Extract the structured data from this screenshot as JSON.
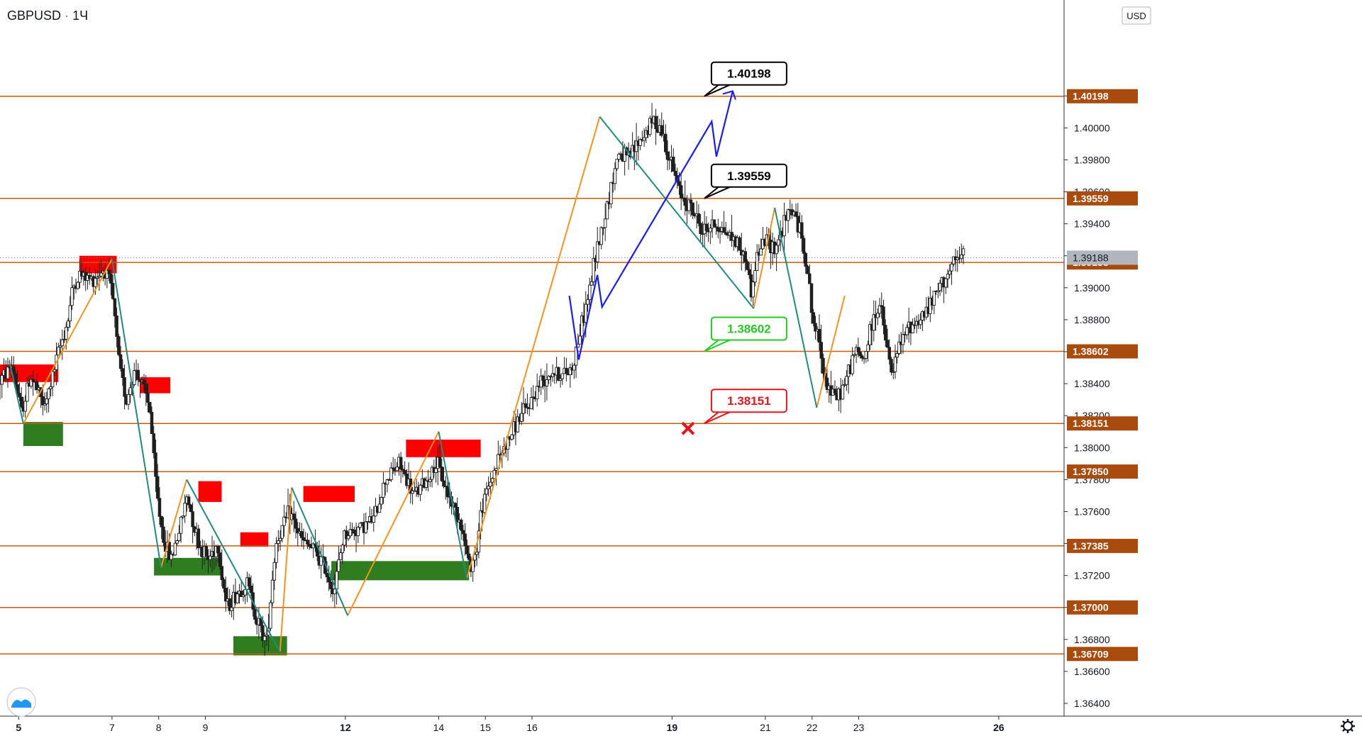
{
  "header": {
    "symbol": "GBPUSD",
    "separator": "·",
    "interval": "1Ч",
    "currency": "USD"
  },
  "colors": {
    "background": "#ffffff",
    "level_line": "#c75b12",
    "level_badge": "#a94b0c",
    "candle": "#1f1f1f",
    "supply_zone": "#ff0000",
    "demand_zone": "#2e7d1f",
    "zigzag_up": "#f7931a",
    "zigzag_down": "#1e8c7e",
    "projection": "#1a1aff",
    "callout_black": "#000000",
    "callout_green": "#22cc22",
    "callout_red": "#e8141c",
    "cross_marker": "#e8141c",
    "current_price_badge": "#b2b5be",
    "axis_text": "#131722"
  },
  "icons": {
    "logo": "tradingview-logo-icon",
    "settings": "gear-icon",
    "cross": "x-mark-icon"
  },
  "chart_data": {
    "type": "candlestick",
    "title": "GBPUSD · 1Ч",
    "ylim": [
      1.3632,
      1.408
    ],
    "y_ticks": [
      1.364,
      1.366,
      1.368,
      1.37,
      1.372,
      1.374,
      1.376,
      1.378,
      1.38,
      1.382,
      1.384,
      1.386,
      1.388,
      1.39,
      1.392,
      1.394,
      1.396,
      1.398,
      1.4,
      1.402
    ],
    "x_axis": {
      "range": [
        4.6,
        27.4
      ],
      "ticks": [
        {
          "label": "5",
          "value": 5,
          "bold": true
        },
        {
          "label": "7",
          "value": 7,
          "bold": false
        },
        {
          "label": "8",
          "value": 8,
          "bold": false
        },
        {
          "label": "9",
          "value": 9,
          "bold": false
        },
        {
          "label": "12",
          "value": 12,
          "bold": true
        },
        {
          "label": "14",
          "value": 14,
          "bold": false
        },
        {
          "label": "15",
          "value": 15,
          "bold": false
        },
        {
          "label": "16",
          "value": 16,
          "bold": false
        },
        {
          "label": "19",
          "value": 19,
          "bold": true
        },
        {
          "label": "21",
          "value": 21,
          "bold": false
        },
        {
          "label": "22",
          "value": 22,
          "bold": false
        },
        {
          "label": "23",
          "value": 23,
          "bold": false
        },
        {
          "label": "26",
          "value": 26,
          "bold": true
        }
      ]
    },
    "levels": [
      {
        "label": "1.40198",
        "value": 1.40198
      },
      {
        "label": "1.39559",
        "value": 1.39559
      },
      {
        "label": "1.39158",
        "value": 1.39158
      },
      {
        "label": "1.38602",
        "value": 1.38602
      },
      {
        "label": "1.38151",
        "value": 1.38151
      },
      {
        "label": "1.37850",
        "value": 1.3785
      },
      {
        "label": "1.37385",
        "value": 1.37385
      },
      {
        "label": "1.37000",
        "value": 1.37
      },
      {
        "label": "1.36709",
        "value": 1.36709
      }
    ],
    "current_price": {
      "label": "1.39188",
      "value": 1.39188
    },
    "price_path": [
      [
        4.6,
        1.384
      ],
      [
        4.9,
        1.3852
      ],
      [
        5.1,
        1.3822
      ],
      [
        5.3,
        1.3845
      ],
      [
        5.6,
        1.3825
      ],
      [
        5.9,
        1.386
      ],
      [
        6.1,
        1.388
      ],
      [
        6.2,
        1.39
      ],
      [
        6.35,
        1.3908
      ],
      [
        6.6,
        1.3905
      ],
      [
        6.8,
        1.391
      ],
      [
        6.9,
        1.3912
      ],
      [
        7.05,
        1.3895
      ],
      [
        7.2,
        1.385
      ],
      [
        7.35,
        1.383
      ],
      [
        7.55,
        1.385
      ],
      [
        7.85,
        1.3825
      ],
      [
        8.0,
        1.377
      ],
      [
        8.15,
        1.3742
      ],
      [
        8.3,
        1.373
      ],
      [
        8.5,
        1.375
      ],
      [
        8.65,
        1.377
      ],
      [
        8.9,
        1.374
      ],
      [
        9.1,
        1.373
      ],
      [
        9.3,
        1.374
      ],
      [
        9.5,
        1.37
      ],
      [
        9.75,
        1.371
      ],
      [
        9.95,
        1.3715
      ],
      [
        10.15,
        1.3692
      ],
      [
        10.35,
        1.3678
      ],
      [
        10.55,
        1.374
      ],
      [
        10.85,
        1.376
      ],
      [
        11.1,
        1.3742
      ],
      [
        11.4,
        1.3735
      ],
      [
        11.6,
        1.3725
      ],
      [
        11.8,
        1.371
      ],
      [
        12.0,
        1.3745
      ],
      [
        12.35,
        1.375
      ],
      [
        12.65,
        1.3755
      ],
      [
        12.9,
        1.378
      ],
      [
        13.2,
        1.379
      ],
      [
        13.5,
        1.377
      ],
      [
        13.75,
        1.3778
      ],
      [
        14.0,
        1.379
      ],
      [
        14.25,
        1.377
      ],
      [
        14.5,
        1.3755
      ],
      [
        14.7,
        1.3725
      ],
      [
        14.85,
        1.3735
      ],
      [
        14.95,
        1.376
      ],
      [
        15.1,
        1.3775
      ],
      [
        15.35,
        1.3795
      ],
      [
        15.55,
        1.3805
      ],
      [
        15.75,
        1.3818
      ],
      [
        15.95,
        1.3825
      ],
      [
        16.2,
        1.384
      ],
      [
        16.45,
        1.3848
      ],
      [
        16.7,
        1.3845
      ],
      [
        16.9,
        1.385
      ],
      [
        17.05,
        1.387
      ],
      [
        17.25,
        1.3895
      ],
      [
        17.4,
        1.392
      ],
      [
        17.6,
        1.3945
      ],
      [
        17.75,
        1.3965
      ],
      [
        17.9,
        1.3985
      ],
      [
        18.1,
        1.398
      ],
      [
        18.3,
        1.399
      ],
      [
        18.5,
        1.3998
      ],
      [
        18.65,
        1.4005
      ],
      [
        18.8,
        1.4
      ],
      [
        19.0,
        1.398
      ],
      [
        19.2,
        1.396
      ],
      [
        19.45,
        1.395
      ],
      [
        19.7,
        1.3935
      ],
      [
        19.95,
        1.394
      ],
      [
        20.2,
        1.3935
      ],
      [
        20.45,
        1.3928
      ],
      [
        20.65,
        1.3915
      ],
      [
        20.75,
        1.3895
      ],
      [
        20.85,
        1.392
      ],
      [
        21.05,
        1.393
      ],
      [
        21.25,
        1.3925
      ],
      [
        21.45,
        1.394
      ],
      [
        21.6,
        1.395
      ],
      [
        21.8,
        1.3935
      ],
      [
        21.95,
        1.391
      ],
      [
        22.05,
        1.388
      ],
      [
        22.2,
        1.3865
      ],
      [
        22.35,
        1.384
      ],
      [
        22.55,
        1.383
      ],
      [
        22.75,
        1.384
      ],
      [
        22.95,
        1.386
      ],
      [
        23.15,
        1.3855
      ],
      [
        23.35,
        1.388
      ],
      [
        23.5,
        1.389
      ],
      [
        23.6,
        1.387
      ],
      [
        23.75,
        1.3845
      ],
      [
        23.9,
        1.3862
      ],
      [
        24.1,
        1.3875
      ],
      [
        24.35,
        1.388
      ],
      [
        24.6,
        1.389
      ],
      [
        24.85,
        1.3905
      ],
      [
        25.1,
        1.3915
      ],
      [
        25.25,
        1.392
      ]
    ],
    "supply_zones": [
      {
        "x0": 4.55,
        "x1": 5.85,
        "y0": 1.3841,
        "y1": 1.3852
      },
      {
        "x0": 6.3,
        "x1": 7.1,
        "y0": 1.3909,
        "y1": 1.392
      },
      {
        "x0": 7.6,
        "x1": 8.25,
        "y0": 1.3834,
        "y1": 1.3844
      },
      {
        "x0": 8.85,
        "x1": 9.35,
        "y0": 1.3766,
        "y1": 1.3779
      },
      {
        "x0": 9.75,
        "x1": 10.35,
        "y0": 1.3738,
        "y1": 1.3747
      },
      {
        "x0": 11.1,
        "x1": 12.2,
        "y0": 1.3766,
        "y1": 1.3776
      },
      {
        "x0": 13.3,
        "x1": 14.9,
        "y0": 1.3794,
        "y1": 1.3805
      }
    ],
    "demand_zones": [
      {
        "x0": 5.1,
        "x1": 5.95,
        "y0": 1.3801,
        "y1": 1.3816
      },
      {
        "x0": 7.9,
        "x1": 9.35,
        "y0": 1.372,
        "y1": 1.3731
      },
      {
        "x0": 9.6,
        "x1": 10.75,
        "y0": 1.367,
        "y1": 1.3682
      },
      {
        "x0": 11.7,
        "x1": 14.65,
        "y0": 1.3717,
        "y1": 1.3729
      }
    ],
    "zigzag_up": [
      [
        [
          5.1,
          1.3815
        ],
        [
          7.0,
          1.3918
        ]
      ],
      [
        [
          8.05,
          1.3725
        ],
        [
          8.6,
          1.378
        ]
      ],
      [
        [
          10.6,
          1.3672
        ],
        [
          10.85,
          1.3775
        ]
      ],
      [
        [
          12.05,
          1.3695
        ],
        [
          14.0,
          1.381
        ]
      ],
      [
        [
          14.6,
          1.3718
        ],
        [
          17.45,
          1.4007
        ]
      ],
      [
        [
          20.75,
          1.3887
        ],
        [
          21.2,
          1.395
        ]
      ],
      [
        [
          22.1,
          1.3825
        ],
        [
          22.7,
          1.3895
        ]
      ]
    ],
    "zigzag_down": [
      [
        [
          4.8,
          1.3854
        ],
        [
          5.1,
          1.3815
        ]
      ],
      [
        [
          7.0,
          1.3918
        ],
        [
          8.05,
          1.3725
        ]
      ],
      [
        [
          8.6,
          1.378
        ],
        [
          10.6,
          1.3672
        ]
      ],
      [
        [
          10.85,
          1.3775
        ],
        [
          12.05,
          1.3695
        ]
      ],
      [
        [
          14.0,
          1.381
        ],
        [
          14.6,
          1.3718
        ]
      ],
      [
        [
          17.45,
          1.4007
        ],
        [
          20.75,
          1.3887
        ]
      ],
      [
        [
          21.2,
          1.395
        ],
        [
          22.1,
          1.3825
        ]
      ]
    ],
    "projection_path": [
      [
        16.8,
        1.3895
      ],
      [
        17.0,
        1.3855
      ],
      [
        17.4,
        1.3908
      ],
      [
        17.5,
        1.3888
      ],
      [
        19.85,
        1.4004
      ],
      [
        19.95,
        1.3982
      ],
      [
        20.3,
        1.4023
      ]
    ],
    "callouts": [
      {
        "label": "1.40198",
        "style": "black",
        "anchor": [
          20.3,
          1.40198
        ]
      },
      {
        "label": "1.39559",
        "style": "black",
        "anchor": [
          20.3,
          1.39559
        ]
      },
      {
        "label": "1.38602",
        "style": "green",
        "anchor": [
          20.3,
          1.38602
        ]
      },
      {
        "label": "1.38151",
        "style": "red",
        "anchor": [
          20.3,
          1.38151
        ]
      }
    ],
    "cross_marker": {
      "x": 19.95,
      "y": 1.3812
    }
  }
}
